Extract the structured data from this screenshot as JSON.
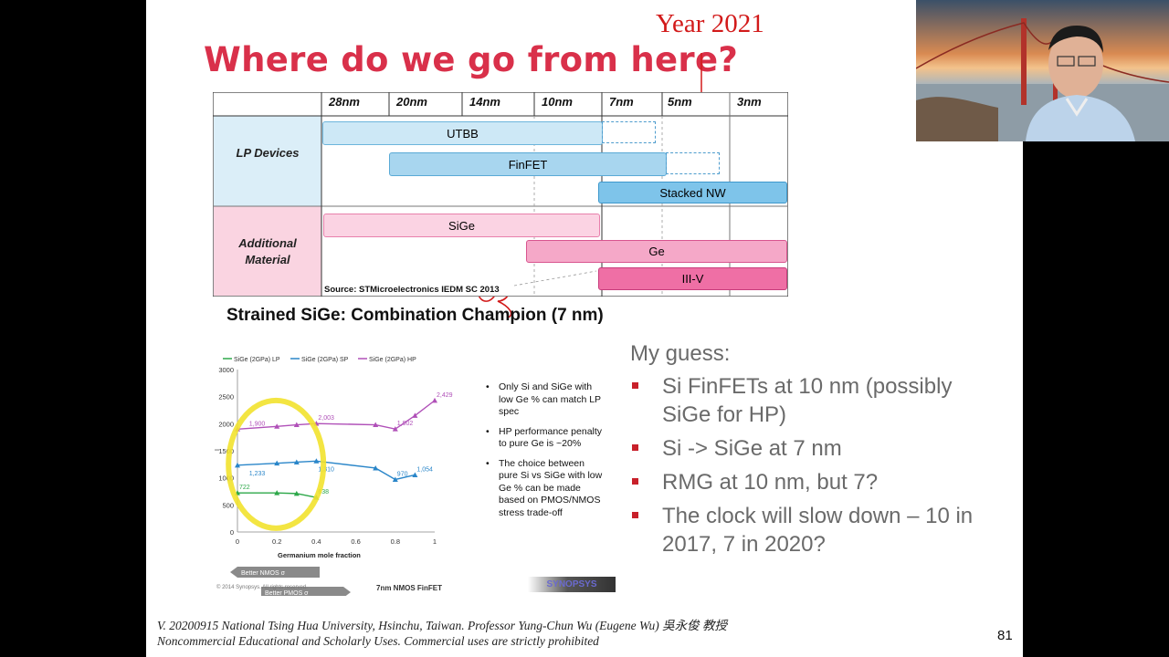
{
  "slide": {
    "title": "Where do we go from here?",
    "annotation_year": "Year 2021",
    "roadmap": {
      "nodes": [
        "28nm",
        "20nm",
        "14nm",
        "10nm",
        "7nm",
        "5nm",
        "3nm"
      ],
      "row_lp": "LP Devices",
      "row_material": "Additional Material",
      "bars": {
        "utbb": "UTBB",
        "finfet": "FinFET",
        "stacked_nw": "Stacked NW",
        "sige": "SiGe",
        "ge": "Ge",
        "iiiv": "III-V"
      },
      "source": "Source: STMicroelectronics IEDM SC 2013"
    },
    "subtitle": "Strained SiGe: Combination Champion (7 nm)",
    "chart_data": {
      "type": "line",
      "series": [
        {
          "name": "SiGe (2GPa) LP",
          "color": "#2ea84a",
          "x": [
            0,
            0.2,
            0.3,
            0.4
          ],
          "y": [
            722,
            722,
            710,
            638
          ]
        },
        {
          "name": "SiGe (2GPa) SP",
          "color": "#2a86c9",
          "x": [
            0,
            0.2,
            0.3,
            0.4,
            0.7,
            0.8,
            0.9
          ],
          "y": [
            1233,
            1270,
            1290,
            1310,
            1180,
            970,
            1054
          ]
        },
        {
          "name": "SiGe (2GPa) HP",
          "color": "#b050b8",
          "x": [
            0,
            0.2,
            0.3,
            0.4,
            0.7,
            0.8,
            0.9,
            1.0
          ],
          "y": [
            1900,
            1950,
            1980,
            2003,
            1980,
            1902,
            2150,
            2429
          ]
        }
      ],
      "labels": [
        {
          "x": 0.05,
          "y": 1900,
          "text": "1,900",
          "series": 2
        },
        {
          "x": 0.4,
          "y": 2003,
          "text": "2,003",
          "series": 2
        },
        {
          "x": 0.8,
          "y": 1902,
          "text": "1,902",
          "series": 2
        },
        {
          "x": 1.0,
          "y": 2429,
          "text": "2,429",
          "series": 2
        },
        {
          "x": 0.05,
          "y": 1233,
          "text": "1,233",
          "series": 1
        },
        {
          "x": 0.4,
          "y": 1310,
          "text": "1,310",
          "series": 1
        },
        {
          "x": 0.8,
          "y": 970,
          "text": "970",
          "series": 1
        },
        {
          "x": 0.9,
          "y": 1054,
          "text": "1,054",
          "series": 1
        },
        {
          "x": 0.0,
          "y": 722,
          "text": "722",
          "series": 0
        },
        {
          "x": 0.4,
          "y": 638,
          "text": "638",
          "series": 0
        }
      ],
      "xlabel": "Germanium mole fraction",
      "ylabel": "I",
      "xlim": [
        0,
        1
      ],
      "ylim": [
        0,
        3000
      ],
      "xticks": [
        0,
        0.2,
        0.4,
        0.6,
        0.8,
        1
      ],
      "yticks": [
        0,
        500,
        1000,
        1500,
        2000,
        2500,
        3000
      ],
      "arrow_nmos": "Better NMOS σ",
      "arrow_pmos": "Better PMOS σ"
    },
    "chart_bullets": [
      "Only Si and SiGe with low Ge % can match LP spec",
      "HP performance penalty to pure Ge is ~20%",
      "The choice between pure Si vs SiGe with low Ge % can be made based on PMOS/NMOS stress trade-off"
    ],
    "copyright": "© 2014 Synopsys. All rights reserved.",
    "nmos_finfet": "7nm NMOS FinFET",
    "logo": "SYNOPSYS",
    "guess": {
      "heading": "My guess:",
      "items": [
        "Si FinFETs at 10 nm (possibly SiGe for HP)",
        "Si -> SiGe at 7 nm",
        "RMG at 10 nm, but 7?",
        "The clock will slow down – 10 in 2017, 7 in 2020?"
      ]
    },
    "footer_line1": "V. 20200915 National Tsing Hua University, Hsinchu, Taiwan. Professor Yung-Chun Wu (Eugene Wu) 吳永俊 教授",
    "footer_line2": "Noncommercial Educational and Scholarly Uses. Commercial uses are strictly prohibited",
    "page_number": "81"
  },
  "colors": {
    "title": "#d9304a",
    "lp_band": "#dbeef8",
    "material_band": "#fad4e1",
    "blue_bar": "#a8d6ef",
    "pink_bar": "#f5a8c8",
    "accent_red": "#c8202a"
  }
}
